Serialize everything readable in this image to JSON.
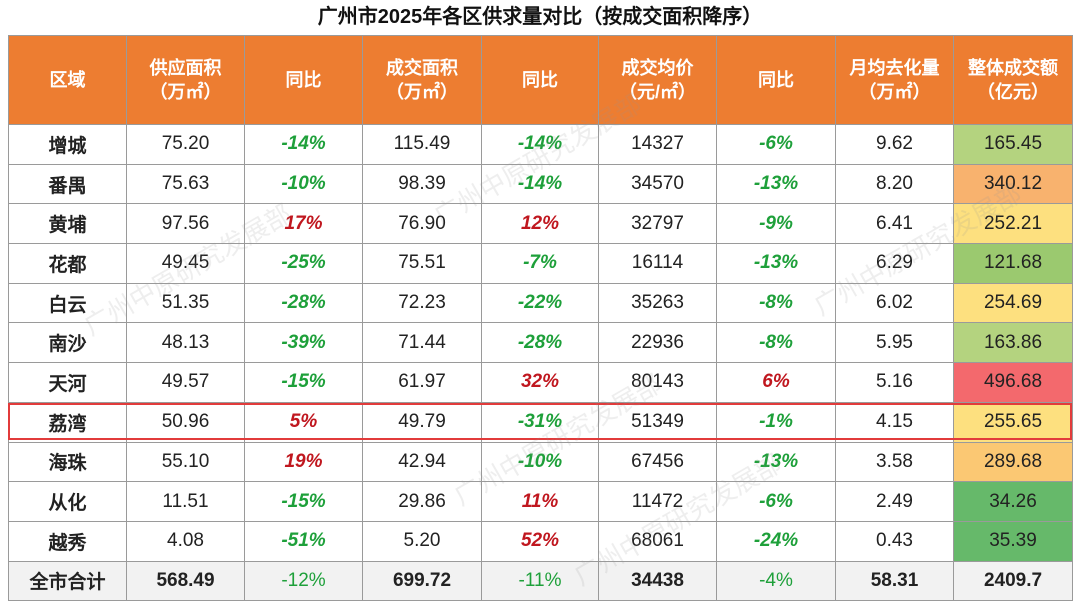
{
  "title": "广州市2025年各区供求量对比（按成交面积降序）",
  "watermark": "广州中原研究发展部",
  "columns": [
    {
      "line1": "区域",
      "line2": ""
    },
    {
      "line1": "供应面积",
      "line2": "（万㎡）"
    },
    {
      "line1": "同比",
      "line2": ""
    },
    {
      "line1": "成交面积",
      "line2": "（万㎡）"
    },
    {
      "line1": "同比",
      "line2": ""
    },
    {
      "line1": "成交均价",
      "line2": "（元/㎡）"
    },
    {
      "line1": "同比",
      "line2": ""
    },
    {
      "line1": "月均去化量",
      "line2": "（万㎡）"
    },
    {
      "line1": "整体成交额",
      "line2": "（亿元）"
    }
  ],
  "rows": [
    {
      "district": "增城",
      "supply": "75.20",
      "supply_yoy": "-14%",
      "deal_area": "115.49",
      "deal_yoy": "-14%",
      "price": "14327",
      "price_yoy": "-6%",
      "monthly": "9.62",
      "amount": "165.45",
      "amount_color": "#b4d37f"
    },
    {
      "district": "番禺",
      "supply": "75.63",
      "supply_yoy": "-10%",
      "deal_area": "98.39",
      "deal_yoy": "-14%",
      "price": "34570",
      "price_yoy": "-13%",
      "monthly": "8.20",
      "amount": "340.12",
      "amount_color": "#f8b26e"
    },
    {
      "district": "黄埔",
      "supply": "97.56",
      "supply_yoy": "17%",
      "deal_area": "76.90",
      "deal_yoy": "12%",
      "price": "32797",
      "price_yoy": "-9%",
      "monthly": "6.41",
      "amount": "252.21",
      "amount_color": "#fde07f"
    },
    {
      "district": "花都",
      "supply": "49.45",
      "supply_yoy": "-25%",
      "deal_area": "75.51",
      "deal_yoy": "-7%",
      "price": "16114",
      "price_yoy": "-13%",
      "monthly": "6.29",
      "amount": "121.68",
      "amount_color": "#9bc96f"
    },
    {
      "district": "白云",
      "supply": "51.35",
      "supply_yoy": "-28%",
      "deal_area": "72.23",
      "deal_yoy": "-22%",
      "price": "35263",
      "price_yoy": "-8%",
      "monthly": "6.02",
      "amount": "254.69",
      "amount_color": "#fde07f"
    },
    {
      "district": "南沙",
      "supply": "48.13",
      "supply_yoy": "-39%",
      "deal_area": "71.44",
      "deal_yoy": "-28%",
      "price": "22936",
      "price_yoy": "-8%",
      "monthly": "5.95",
      "amount": "163.86",
      "amount_color": "#b4d37f"
    },
    {
      "district": "天河",
      "supply": "49.57",
      "supply_yoy": "-15%",
      "deal_area": "61.97",
      "deal_yoy": "32%",
      "price": "80143",
      "price_yoy": "6%",
      "monthly": "5.16",
      "amount": "496.68",
      "amount_color": "#f3696d"
    },
    {
      "district": "荔湾",
      "supply": "50.96",
      "supply_yoy": "5%",
      "deal_area": "49.79",
      "deal_yoy": "-31%",
      "price": "51349",
      "price_yoy": "-1%",
      "monthly": "4.15",
      "amount": "255.65",
      "amount_color": "#fde07f"
    },
    {
      "district": "海珠",
      "supply": "55.10",
      "supply_yoy": "19%",
      "deal_area": "42.94",
      "deal_yoy": "-10%",
      "price": "67456",
      "price_yoy": "-13%",
      "monthly": "3.58",
      "amount": "289.68",
      "amount_color": "#fbc873"
    },
    {
      "district": "从化",
      "supply": "11.51",
      "supply_yoy": "-15%",
      "deal_area": "29.86",
      "deal_yoy": "11%",
      "price": "11472",
      "price_yoy": "-6%",
      "monthly": "2.49",
      "amount": "34.26",
      "amount_color": "#66b96a"
    },
    {
      "district": "越秀",
      "supply": "4.08",
      "supply_yoy": "-51%",
      "deal_area": "5.20",
      "deal_yoy": "52%",
      "price": "68061",
      "price_yoy": "-24%",
      "monthly": "0.43",
      "amount": "35.39",
      "amount_color": "#66b96a"
    }
  ],
  "total": {
    "district": "全市合计",
    "supply": "568.49",
    "supply_yoy": "-12%",
    "deal_area": "699.72",
    "deal_yoy": "-11%",
    "price": "34438",
    "price_yoy": "-4%",
    "monthly": "58.31",
    "amount": "2409.7"
  },
  "highlighted_district": "荔湾",
  "colors": {
    "header": "#ed7d31",
    "positive": "#c0171f",
    "negative": "#1ea03a",
    "highlight_border": "#e23b3b"
  }
}
